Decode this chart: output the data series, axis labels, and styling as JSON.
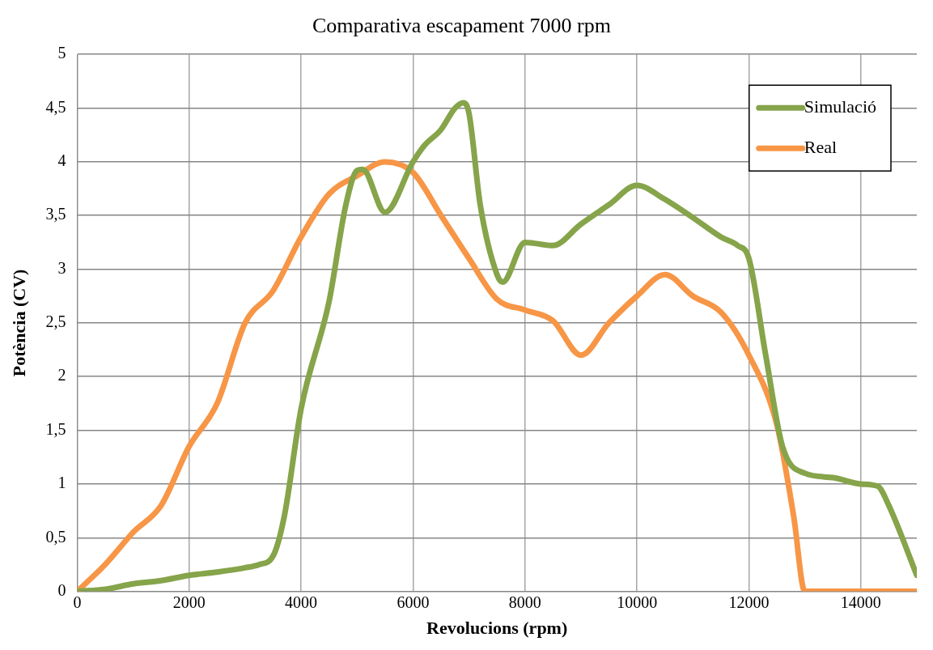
{
  "chart_data": {
    "type": "line",
    "title": "Comparativa escapament 7000 rpm",
    "xlabel": "Revolucions (rpm)",
    "ylabel": "Potència (CV)",
    "xlim": [
      0,
      15000
    ],
    "xticks": [
      0,
      2000,
      4000,
      6000,
      8000,
      10000,
      12000,
      14000
    ],
    "ylim": [
      0,
      5
    ],
    "yticks": [
      0,
      {
        "value": 0.5,
        "label": "0,5"
      },
      1,
      {
        "value": 1.5,
        "label": "1,5"
      },
      2,
      {
        "value": 2.5,
        "label": "2,5"
      },
      3,
      {
        "value": 3.5,
        "label": "3,5"
      },
      4,
      {
        "value": 4.5,
        "label": "4,5"
      },
      5
    ],
    "grid": true,
    "legend": "top right",
    "marker": "none",
    "line_style": "solid",
    "series": [
      {
        "name": "Simulació",
        "color": "#86a44a",
        "x": [
          0,
          500,
          1000,
          1500,
          2000,
          2500,
          3000,
          3250,
          3500,
          3700,
          4000,
          4500,
          4800,
          5000,
          5100,
          5500,
          6000,
          6200,
          6500,
          6750,
          6900,
          7000,
          7200,
          7500,
          7600,
          8000,
          8500,
          9000,
          9500,
          10000,
          10500,
          11000,
          11500,
          11800,
          12000,
          12300,
          12600,
          13000,
          13500,
          14000,
          14300,
          14500,
          15000
        ],
        "values": [
          0,
          0.02,
          0.07,
          0.1,
          0.15,
          0.18,
          0.22,
          0.25,
          0.33,
          0.7,
          1.7,
          2.7,
          3.6,
          3.92,
          3.93,
          3.53,
          4.0,
          4.15,
          4.3,
          4.5,
          4.55,
          4.45,
          3.6,
          2.95,
          2.88,
          3.25,
          3.22,
          3.42,
          3.6,
          3.78,
          3.65,
          3.48,
          3.3,
          3.22,
          3.1,
          2.2,
          1.35,
          1.1,
          1.06,
          1.0,
          0.98,
          0.8,
          0.15
        ]
      },
      {
        "name": "Real",
        "color": "#f79646",
        "x": [
          0,
          500,
          1000,
          1500,
          2000,
          2500,
          3000,
          3500,
          4000,
          4500,
          5000,
          5500,
          6000,
          6500,
          7000,
          7500,
          8000,
          8500,
          9000,
          9500,
          10000,
          10500,
          11000,
          11500,
          12000,
          12500,
          12800,
          13000,
          13500,
          14000,
          15000
        ],
        "values": [
          0,
          0.25,
          0.55,
          0.8,
          1.35,
          1.75,
          2.5,
          2.8,
          3.3,
          3.7,
          3.87,
          4.0,
          3.9,
          3.5,
          3.1,
          2.72,
          2.62,
          2.52,
          2.2,
          2.5,
          2.75,
          2.95,
          2.75,
          2.6,
          2.2,
          1.55,
          0.7,
          0,
          0,
          0,
          0
        ]
      }
    ]
  }
}
